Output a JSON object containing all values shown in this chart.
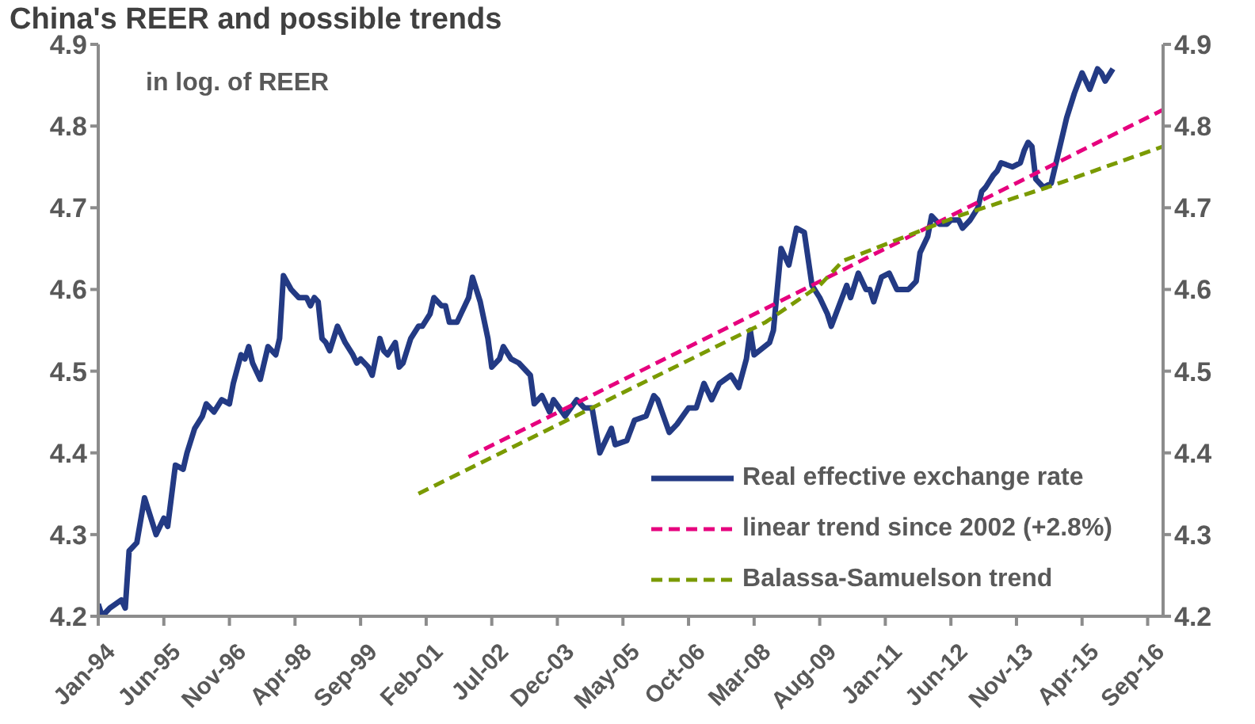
{
  "chart_data": {
    "type": "line",
    "title": "China's REER and possible trends",
    "ylabel": "in log. of REER",
    "xlim": [
      "1994-01",
      "2017-01"
    ],
    "xticks": [
      {
        "value": "1994-01",
        "label": "Jan-94"
      },
      {
        "value": "1995-06",
        "label": "Jun-95"
      },
      {
        "value": "1996-11",
        "label": "Nov-96"
      },
      {
        "value": "1998-04",
        "label": "Apr-98"
      },
      {
        "value": "1999-09",
        "label": "Sep-99"
      },
      {
        "value": "2001-02",
        "label": "Feb-01"
      },
      {
        "value": "2002-07",
        "label": "Jul-02"
      },
      {
        "value": "2003-12",
        "label": "Dec-03"
      },
      {
        "value": "2005-05",
        "label": "May-05"
      },
      {
        "value": "2006-10",
        "label": "Oct-06"
      },
      {
        "value": "2008-03",
        "label": "Mar-08"
      },
      {
        "value": "2009-08",
        "label": "Aug-09"
      },
      {
        "value": "2011-01",
        "label": "Jan-11"
      },
      {
        "value": "2012-06",
        "label": "Jun-12"
      },
      {
        "value": "2013-11",
        "label": "Nov-13"
      },
      {
        "value": "2015-04",
        "label": "Apr-15"
      },
      {
        "value": "2016-09",
        "label": "Sep-16"
      }
    ],
    "ylim": [
      4.2,
      4.9
    ],
    "yticks": [
      4.2,
      4.3,
      4.4,
      4.5,
      4.6,
      4.7,
      4.8,
      4.9
    ],
    "y2lim": [
      4.2,
      4.9
    ],
    "y2ticks": [
      4.2,
      4.3,
      4.4,
      4.5,
      4.6,
      4.7,
      4.8,
      4.9
    ],
    "legend": "bottom right",
    "marker": "none",
    "series": [
      {
        "name": "Real effective exchange rate",
        "color": "#233a84",
        "line_style": "solid",
        "x": [
          "1994-01",
          "1994-02",
          "1994-04",
          "1994-07",
          "1994-08",
          "1994-09",
          "1994-11",
          "1995-01",
          "1995-04",
          "1995-06",
          "1995-07",
          "1995-09",
          "1995-11",
          "1995-12",
          "1996-02",
          "1996-04",
          "1996-05",
          "1996-07",
          "1996-09",
          "1996-11",
          "1996-12",
          "1997-02",
          "1997-03",
          "1997-04",
          "1997-05",
          "1997-07",
          "1997-09",
          "1997-11",
          "1997-12",
          "1998-01",
          "1998-03",
          "1998-04",
          "1998-05",
          "1998-07",
          "1998-08",
          "1998-09",
          "1998-10",
          "1998-11",
          "1998-12",
          "1999-01",
          "1999-03",
          "1999-05",
          "1999-07",
          "1999-08",
          "1999-09",
          "1999-11",
          "1999-12",
          "2000-02",
          "2000-03",
          "2000-04",
          "2000-06",
          "2000-07",
          "2000-08",
          "2000-10",
          "2000-12",
          "2001-01",
          "2001-03",
          "2001-04",
          "2001-06",
          "2001-07",
          "2001-08",
          "2001-10",
          "2001-11",
          "2002-01",
          "2002-02",
          "2002-04",
          "2002-06",
          "2002-07",
          "2002-09",
          "2002-10",
          "2002-12",
          "2003-02",
          "2003-05",
          "2003-06",
          "2003-08",
          "2003-10",
          "2003-11",
          "2004-02",
          "2004-05",
          "2004-07",
          "2004-09",
          "2004-11",
          "2005-02",
          "2005-03",
          "2005-06",
          "2005-08",
          "2005-11",
          "2006-01",
          "2006-02",
          "2006-05",
          "2006-07",
          "2006-10",
          "2006-12",
          "2007-02",
          "2007-04",
          "2007-06",
          "2007-09",
          "2007-11",
          "2008-01",
          "2008-02",
          "2008-03",
          "2008-07",
          "2008-08",
          "2008-10",
          "2008-12",
          "2009-02",
          "2009-04",
          "2009-06",
          "2009-08",
          "2009-10",
          "2009-11",
          "2010-01",
          "2010-03",
          "2010-04",
          "2010-06",
          "2010-08",
          "2010-09",
          "2010-10",
          "2010-12",
          "2011-02",
          "2011-04",
          "2011-07",
          "2011-09",
          "2011-10",
          "2011-12",
          "2012-01",
          "2012-03",
          "2012-05",
          "2012-06",
          "2012-08",
          "2012-09",
          "2012-11",
          "2013-01",
          "2013-02",
          "2013-03",
          "2013-05",
          "2013-06",
          "2013-07",
          "2013-10",
          "2013-12",
          "2014-01",
          "2014-02",
          "2014-03",
          "2014-04",
          "2014-06",
          "2014-08",
          "2014-09",
          "2014-12",
          "2015-02",
          "2015-04",
          "2015-06",
          "2015-08",
          "2015-09",
          "2015-10",
          "2015-12"
        ],
        "values": [
          4.215,
          4.2,
          4.21,
          4.22,
          4.21,
          4.28,
          4.29,
          4.345,
          4.3,
          4.32,
          4.31,
          4.385,
          4.38,
          4.4,
          4.43,
          4.445,
          4.46,
          4.45,
          4.465,
          4.46,
          4.485,
          4.52,
          4.515,
          4.53,
          4.51,
          4.49,
          4.53,
          4.52,
          4.54,
          4.617,
          4.6,
          4.595,
          4.59,
          4.59,
          4.58,
          4.59,
          4.585,
          4.54,
          4.535,
          4.525,
          4.555,
          4.535,
          4.52,
          4.51,
          4.515,
          4.505,
          4.495,
          4.54,
          4.525,
          4.52,
          4.535,
          4.505,
          4.51,
          4.54,
          4.555,
          4.555,
          4.57,
          4.59,
          4.58,
          4.58,
          4.56,
          4.56,
          4.57,
          4.59,
          4.615,
          4.585,
          4.54,
          4.505,
          4.515,
          4.53,
          4.515,
          4.51,
          4.495,
          4.46,
          4.47,
          4.45,
          4.465,
          4.445,
          4.465,
          4.455,
          4.455,
          4.4,
          4.43,
          4.41,
          4.415,
          4.44,
          4.445,
          4.47,
          4.465,
          4.425,
          4.435,
          4.455,
          4.455,
          4.485,
          4.465,
          4.485,
          4.495,
          4.48,
          4.515,
          4.55,
          4.52,
          4.535,
          4.55,
          4.65,
          4.63,
          4.675,
          4.67,
          4.605,
          4.59,
          4.57,
          4.555,
          4.58,
          4.605,
          4.59,
          4.62,
          4.6,
          4.6,
          4.585,
          4.615,
          4.62,
          4.6,
          4.6,
          4.61,
          4.645,
          4.665,
          4.69,
          4.68,
          4.68,
          4.685,
          4.685,
          4.675,
          4.685,
          4.7,
          4.72,
          4.725,
          4.74,
          4.745,
          4.755,
          4.75,
          4.755,
          4.77,
          4.78,
          4.775,
          4.735,
          4.725,
          4.73,
          4.75,
          4.81,
          4.84,
          4.865,
          4.845,
          4.87,
          4.865,
          4.855,
          4.87
        ]
      },
      {
        "name": "linear trend since 2002 (+2.8%)",
        "color": "#e6007e",
        "line_style": "dashed",
        "x": [
          "2002-01",
          "2017-01"
        ],
        "values": [
          4.395,
          4.82
        ]
      },
      {
        "name": "Balassa-Samuelson trend",
        "color": "#7a9a01",
        "line_style": "dashed",
        "x": [
          "2000-12",
          "2008-06",
          "2009-08",
          "2010-02",
          "2012-08",
          "2014-07",
          "2017-01"
        ],
        "values": [
          4.35,
          4.56,
          4.605,
          4.635,
          4.69,
          4.725,
          4.775
        ]
      }
    ]
  }
}
